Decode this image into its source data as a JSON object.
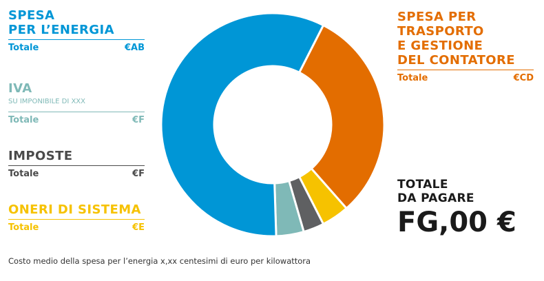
{
  "legend": {
    "energia": {
      "title_line1": "SPESA",
      "title_line2": "PER L’ENERGIA",
      "total_label": "Totale",
      "total_value": "€AB",
      "color": "#0096d6"
    },
    "iva": {
      "title": "IVA",
      "subtitle": "SU IMPONIBILE DI XXX",
      "total_label": "Totale",
      "total_value": "€F",
      "color": "#7fb9b7"
    },
    "imposte": {
      "title": "IMPOSTE",
      "total_label": "Totale",
      "total_value": "€F",
      "color": "#5f6062"
    },
    "oneri": {
      "title": "ONERI DI SISTEMA",
      "total_label": "Totale",
      "total_value": "€E",
      "color": "#f6c200"
    },
    "trasporto": {
      "title_lines": [
        "SPESA PER",
        "TRASPORTO",
        "E GESTIONE",
        "DEL CONTATORE"
      ],
      "total_label": "Totale",
      "total_value": "€CD",
      "color": "#e36d00"
    }
  },
  "total_to_pay": {
    "label_line1": "TOTALE",
    "label_line2": "DA PAGARE",
    "value": "FG,00 €"
  },
  "footnote": "Costo medio della spesa per l’energia x,xx centesimi di euro per kilowattora",
  "chart_data": {
    "type": "pie",
    "donut": true,
    "start_angle_deg": 27,
    "direction": "clockwise",
    "unit": "percent",
    "slices": [
      {
        "label": "SPESA PER L’ENERGIA",
        "value": 58,
        "color": "#0096d6"
      },
      {
        "label": "SPESA PER TRASPORTO E GESTIONE DEL CONTATORE",
        "value": 31,
        "color": "#e36d00"
      },
      {
        "label": "ONERI DI SISTEMA",
        "value": 4,
        "color": "#f6c200"
      },
      {
        "label": "IMPOSTE",
        "value": 3,
        "color": "#5f6062"
      },
      {
        "label": "IVA",
        "value": 4,
        "color": "#7fb9b7"
      }
    ],
    "slice_order": [
      "SPESA PER L’ENERGIA",
      "SPESA PER TRASPORTO E GESTIONE DEL CONTATORE",
      "ONERI DI SISTEMA",
      "IMPOSTE",
      "IVA"
    ],
    "chart_order_from_start": [
      "SPESA PER TRASPORTO E GESTIONE DEL CONTATORE",
      "ONERI DI SISTEMA",
      "IMPOSTE",
      "IVA",
      "SPESA PER L’ENERGIA"
    ]
  }
}
